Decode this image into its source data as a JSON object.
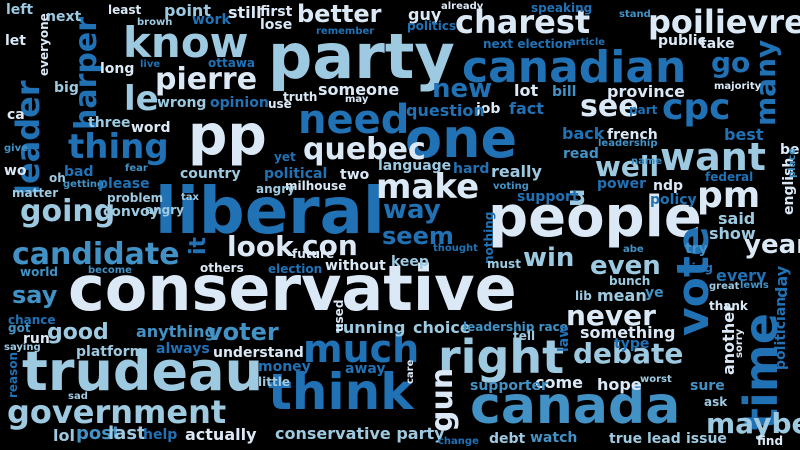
{
  "palette": {
    "background": "#000000",
    "white": "#ffffff",
    "pale_blue": "#dbe9f6",
    "light_blue": "#9ecae1",
    "sky_blue": "#6baed6",
    "mid_blue": "#4292c6",
    "blue": "#2171b5",
    "dark_blue": "#08519c",
    "navy": "#08306b"
  },
  "words": [
    {
      "text": "conservative",
      "color": "#dbe9f6"
    },
    {
      "text": "liberal",
      "color": "#2171b5"
    },
    {
      "text": "party",
      "color": "#9ecae1"
    },
    {
      "text": "pp",
      "color": "#dbe9f6"
    },
    {
      "text": "trudeau",
      "color": "#9ecae1"
    },
    {
      "text": "canada",
      "color": "#4292c6"
    },
    {
      "text": "canadian",
      "color": "#2171b5"
    },
    {
      "text": "one",
      "color": "#2171b5"
    },
    {
      "text": "people",
      "color": "#dbe9f6"
    },
    {
      "text": "think",
      "color": "#2171b5"
    },
    {
      "text": "government",
      "color": "#9ecae1"
    },
    {
      "text": "know",
      "color": "#9ecae1"
    },
    {
      "text": "charest",
      "color": "#dbe9f6"
    },
    {
      "text": "poilievre",
      "color": "#dbe9f6"
    },
    {
      "text": "right",
      "color": "#9ecae1"
    },
    {
      "text": "need",
      "color": "#2171b5"
    },
    {
      "text": "much",
      "color": "#2171b5"
    },
    {
      "text": "make",
      "color": "#dbe9f6"
    },
    {
      "text": "cpc",
      "color": "#2171b5"
    },
    {
      "text": "want",
      "color": "#9ecae1"
    },
    {
      "text": "vote",
      "color": "#2171b5"
    },
    {
      "text": "time",
      "color": "#2171b5"
    },
    {
      "text": "pm",
      "color": "#dbe9f6"
    },
    {
      "text": "leader",
      "color": "#2171b5"
    },
    {
      "text": "harper",
      "color": "#2171b5"
    },
    {
      "text": "thing",
      "color": "#2171b5"
    },
    {
      "text": "going",
      "color": "#9ecae1"
    },
    {
      "text": "candidate",
      "color": "#4292c6"
    },
    {
      "text": "quebec",
      "color": "#dbe9f6"
    },
    {
      "text": "debate",
      "color": "#9ecae1"
    },
    {
      "text": "never",
      "color": "#dbe9f6"
    },
    {
      "text": "maybe",
      "color": "#9ecae1"
    },
    {
      "text": "pierre",
      "color": "#dbe9f6"
    },
    {
      "text": "le",
      "color": "#9ecae1"
    },
    {
      "text": "better",
      "color": "#dbe9f6"
    },
    {
      "text": "see",
      "color": "#dbe9f6"
    },
    {
      "text": "new",
      "color": "#2171b5"
    },
    {
      "text": "well",
      "color": "#9ecae1"
    },
    {
      "text": "look",
      "color": "#dbe9f6"
    },
    {
      "text": "con",
      "color": "#dbe9f6"
    },
    {
      "text": "way",
      "color": "#2171b5"
    },
    {
      "text": "seem",
      "color": "#2171b5"
    },
    {
      "text": "win",
      "color": "#9ecae1"
    },
    {
      "text": "even",
      "color": "#9ecae1"
    },
    {
      "text": "year",
      "color": "#dbe9f6"
    },
    {
      "text": "voter",
      "color": "#4292c6"
    },
    {
      "text": "good",
      "color": "#9ecae1"
    },
    {
      "text": "say",
      "color": "#4292c6"
    },
    {
      "text": "gun",
      "color": "#dbe9f6"
    },
    {
      "text": "go",
      "color": "#2171b5"
    },
    {
      "text": "many",
      "color": "#2171b5"
    },
    {
      "text": "u",
      "color": "#9ecae1"
    },
    {
      "text": "it",
      "color": "#2171b5"
    },
    {
      "text": "lol",
      "color": "#9ecae1"
    },
    {
      "text": "post",
      "color": "#4292c6"
    },
    {
      "text": "last",
      "color": "#9ecae1"
    },
    {
      "text": "actually",
      "color": "#dbe9f6"
    },
    {
      "text": "conservative party",
      "color": "#9ecae1"
    },
    {
      "text": "watch",
      "color": "#4292c6"
    },
    {
      "text": "issue",
      "color": "#9ecae1"
    },
    {
      "text": "lead",
      "color": "#9ecae1"
    },
    {
      "text": "true",
      "color": "#9ecae1"
    },
    {
      "text": "debt",
      "color": "#9ecae1"
    },
    {
      "text": "find",
      "color": "#dbe9f6"
    },
    {
      "text": "sure",
      "color": "#4292c6"
    },
    {
      "text": "ask",
      "color": "#9ecae1"
    },
    {
      "text": "hope",
      "color": "#dbe9f6"
    },
    {
      "text": "come",
      "color": "#dbe9f6"
    },
    {
      "text": "supporter",
      "color": "#4292c6"
    },
    {
      "text": "worst",
      "color": "#9ecae1"
    },
    {
      "text": "something",
      "color": "#dbe9f6"
    },
    {
      "text": "type",
      "color": "#2171b5"
    },
    {
      "text": "mean",
      "color": "#9ecae1"
    },
    {
      "text": "lib",
      "color": "#9ecae1"
    },
    {
      "text": "ye",
      "color": "#4292c6"
    },
    {
      "text": "bunch",
      "color": "#9ecae1"
    },
    {
      "text": "every",
      "color": "#2171b5"
    },
    {
      "text": "great",
      "color": "#9ecae1"
    },
    {
      "text": "lewis",
      "color": "#4292c6"
    },
    {
      "text": "thank",
      "color": "#dbe9f6"
    },
    {
      "text": "another",
      "color": "#dbe9f6"
    },
    {
      "text": "sorry",
      "color": "#dbe9f6"
    },
    {
      "text": "politician",
      "color": "#2171b5"
    },
    {
      "text": "day",
      "color": "#2171b5"
    },
    {
      "text": "english",
      "color": "#dbe9f6"
    },
    {
      "text": "said",
      "color": "#9ecae1"
    },
    {
      "text": "show",
      "color": "#9ecae1"
    },
    {
      "text": "try",
      "color": "#4292c6"
    },
    {
      "text": "using",
      "color": "#2171b5"
    },
    {
      "text": "abe",
      "color": "#4292c6"
    },
    {
      "text": "federal",
      "color": "#2171b5"
    },
    {
      "text": "policy",
      "color": "#2171b5"
    },
    {
      "text": "ndp",
      "color": "#dbe9f6"
    },
    {
      "text": "power",
      "color": "#2171b5"
    },
    {
      "text": "support",
      "color": "#2171b5"
    },
    {
      "text": "really",
      "color": "#9ecae1"
    },
    {
      "text": "voting",
      "color": "#4292c6"
    },
    {
      "text": "hard",
      "color": "#2171b5"
    },
    {
      "text": "two",
      "color": "#dbe9f6"
    },
    {
      "text": "milhouse",
      "color": "#dbe9f6"
    },
    {
      "text": "angry",
      "color": "#9ecae1"
    },
    {
      "text": "political",
      "color": "#2171b5"
    },
    {
      "text": "country",
      "color": "#9ecae1"
    },
    {
      "text": "yet",
      "color": "#2171b5"
    },
    {
      "text": "language",
      "color": "#9ecae1"
    },
    {
      "text": "leadership",
      "color": "#4292c6"
    },
    {
      "text": "name",
      "color": "#4292c6"
    },
    {
      "text": "best",
      "color": "#2171b5"
    },
    {
      "text": "believe",
      "color": "#dbe9f6"
    },
    {
      "text": "place",
      "color": "#4292c6"
    },
    {
      "text": "french",
      "color": "#dbe9f6"
    },
    {
      "text": "back",
      "color": "#2171b5"
    },
    {
      "text": "read",
      "color": "#4292c6"
    },
    {
      "text": "part",
      "color": "#2171b5"
    },
    {
      "text": "province",
      "color": "#dbe9f6"
    },
    {
      "text": "bill",
      "color": "#4292c6"
    },
    {
      "text": "majority",
      "color": "#dbe9f6"
    },
    {
      "text": "job",
      "color": "#dbe9f6"
    },
    {
      "text": "fact",
      "color": "#2171b5"
    },
    {
      "text": "lot",
      "color": "#dbe9f6"
    },
    {
      "text": "question",
      "color": "#2171b5"
    },
    {
      "text": "someone",
      "color": "#dbe9f6"
    },
    {
      "text": "may",
      "color": "#dbe9f6"
    },
    {
      "text": "truth",
      "color": "#dbe9f6"
    },
    {
      "text": "use",
      "color": "#dbe9f6"
    },
    {
      "text": "opinion",
      "color": "#2171b5"
    },
    {
      "text": "wrong",
      "color": "#9ecae1"
    },
    {
      "text": "word",
      "color": "#dbe9f6"
    },
    {
      "text": "three",
      "color": "#9ecae1"
    },
    {
      "text": "long",
      "color": "#dbe9f6"
    },
    {
      "text": "big",
      "color": "#9ecae1"
    },
    {
      "text": "ca",
      "color": "#dbe9f6"
    },
    {
      "text": "wo",
      "color": "#dbe9f6"
    },
    {
      "text": "give",
      "color": "#4292c6"
    },
    {
      "text": "bad",
      "color": "#2171b5"
    },
    {
      "text": "oh",
      "color": "#9ecae1"
    },
    {
      "text": "getting",
      "color": "#4292c6"
    },
    {
      "text": "please",
      "color": "#2171b5"
    },
    {
      "text": "matter",
      "color": "#9ecae1"
    },
    {
      "text": "problem",
      "color": "#9ecae1"
    },
    {
      "text": "tax",
      "color": "#9ecae1"
    },
    {
      "text": "fear",
      "color": "#4292c6"
    },
    {
      "text": "convoy",
      "color": "#9ecae1"
    },
    {
      "text": "angry",
      "color": "#9ecae1"
    },
    {
      "text": "world",
      "color": "#4292c6"
    },
    {
      "text": "become",
      "color": "#4292c6"
    },
    {
      "text": "others",
      "color": "#dbe9f6"
    },
    {
      "text": "election",
      "color": "#2171b5"
    },
    {
      "text": "future",
      "color": "#dbe9f6"
    },
    {
      "text": "without",
      "color": "#dbe9f6"
    },
    {
      "text": "keep",
      "color": "#9ecae1"
    },
    {
      "text": "thought",
      "color": "#2171b5"
    },
    {
      "text": "nothing",
      "color": "#2171b5"
    },
    {
      "text": "must",
      "color": "#9ecae1"
    },
    {
      "text": "chance",
      "color": "#2171b5"
    },
    {
      "text": "got",
      "color": "#4292c6"
    },
    {
      "text": "run",
      "color": "#dbe9f6"
    },
    {
      "text": "saying",
      "color": "#9ecae1"
    },
    {
      "text": "platform",
      "color": "#9ecae1"
    },
    {
      "text": "anything",
      "color": "#4292c6"
    },
    {
      "text": "always",
      "color": "#2171b5"
    },
    {
      "text": "understand",
      "color": "#dbe9f6"
    },
    {
      "text": "money",
      "color": "#2171b5"
    },
    {
      "text": "away",
      "color": "#2171b5"
    },
    {
      "text": "running",
      "color": "#9ecae1"
    },
    {
      "text": "used",
      "color": "#dbe9f6"
    },
    {
      "text": "choice",
      "color": "#9ecae1"
    },
    {
      "text": "leadership race",
      "color": "#4292c6"
    },
    {
      "text": "tell",
      "color": "#9ecae1"
    },
    {
      "text": "law",
      "color": "#2171b5"
    },
    {
      "text": "reason",
      "color": "#2171b5"
    },
    {
      "text": "sad",
      "color": "#9ecae1"
    },
    {
      "text": "little",
      "color": "#9ecae1"
    },
    {
      "text": "care",
      "color": "#dbe9f6"
    },
    {
      "text": "help",
      "color": "#2171b5"
    },
    {
      "text": "change",
      "color": "#2171b5"
    },
    {
      "text": "left",
      "color": "#9ecae1"
    },
    {
      "text": "next",
      "color": "#9ecae1"
    },
    {
      "text": "everyone",
      "color": "#dbe9f6"
    },
    {
      "text": "least",
      "color": "#dbe9f6"
    },
    {
      "text": "brown",
      "color": "#9ecae1"
    },
    {
      "text": "point",
      "color": "#9ecae1"
    },
    {
      "text": "work",
      "color": "#2171b5"
    },
    {
      "text": "live",
      "color": "#2171b5"
    },
    {
      "text": "ottawa",
      "color": "#2171b5"
    },
    {
      "text": "still",
      "color": "#dbe9f6"
    },
    {
      "text": "first",
      "color": "#dbe9f6"
    },
    {
      "text": "lose",
      "color": "#dbe9f6"
    },
    {
      "text": "remember",
      "color": "#2171b5"
    },
    {
      "text": "guy",
      "color": "#dbe9f6"
    },
    {
      "text": "politics",
      "color": "#2171b5"
    },
    {
      "text": "already",
      "color": "#dbe9f6"
    },
    {
      "text": "speaking",
      "color": "#2171b5"
    },
    {
      "text": "stand",
      "color": "#4292c6"
    },
    {
      "text": "next election",
      "color": "#2171b5"
    },
    {
      "text": "article",
      "color": "#2171b5"
    },
    {
      "text": "public",
      "color": "#dbe9f6"
    },
    {
      "text": "take",
      "color": "#dbe9f6"
    },
    {
      "text": "let",
      "color": "#dbe9f6"
    }
  ]
}
